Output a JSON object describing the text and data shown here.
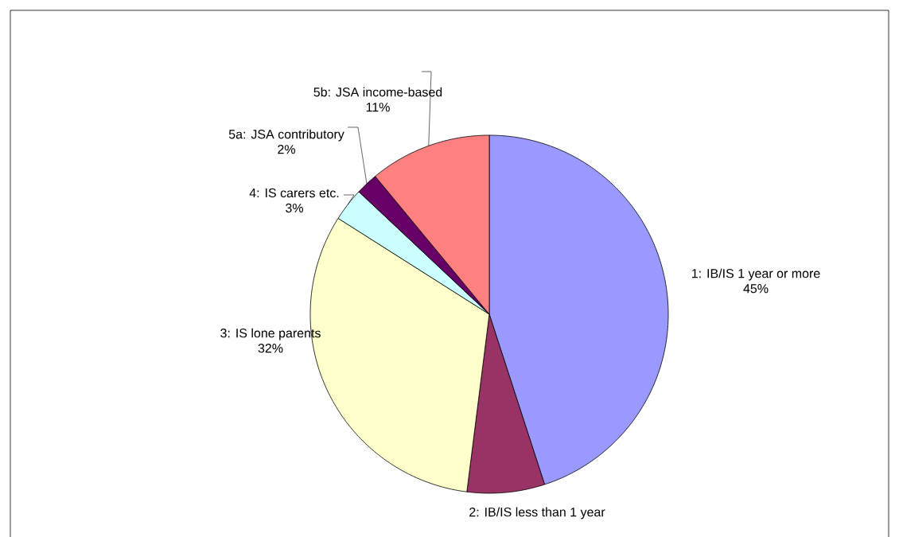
{
  "chart_data": {
    "type": "pie",
    "categories": [
      "1: IB/IS 1 year or more",
      "2: IB/IS less than 1 year",
      "3: IS lone parents",
      "4: IS carers etc.",
      "5a: JSA contributory",
      "5b: JSA income-based"
    ],
    "values": [
      45,
      7,
      32,
      3,
      2,
      11
    ],
    "value_labels": [
      "45%",
      null,
      "32%",
      "3%",
      "2%",
      "11%"
    ],
    "colors": [
      "#9999ff",
      "#993366",
      "#ffffcc",
      "#ccffff",
      "#660066",
      "#ff8080"
    ]
  }
}
